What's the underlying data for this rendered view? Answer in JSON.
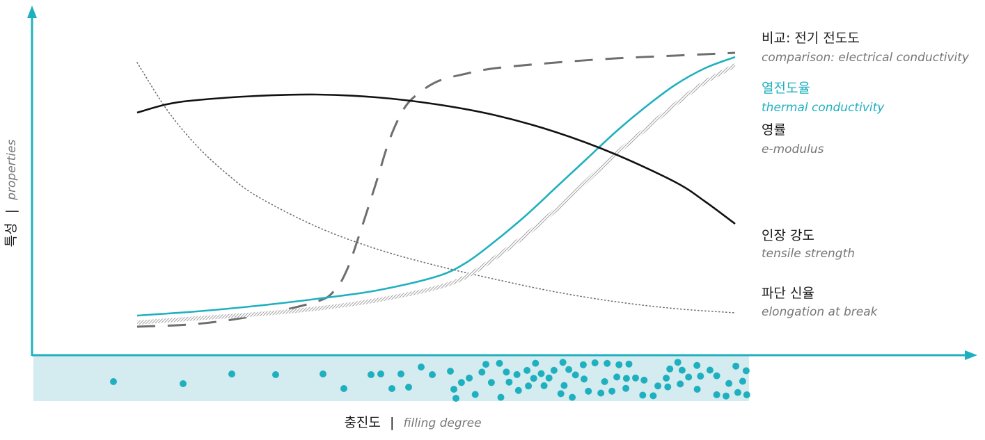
{
  "chart_data": {
    "type": "line",
    "xlabel": {
      "ko": "충진도",
      "separator": "|",
      "en": "filling degree"
    },
    "ylabel": {
      "ko": "특성",
      "separator": "|",
      "en": "properties"
    },
    "xlim": [
      0,
      100
    ],
    "ylim": [
      0,
      100
    ],
    "grid": false,
    "legend": "right",
    "colors": {
      "axis": "#1fb0bf",
      "accent": "#1fb0bf",
      "band": "#d4ebef",
      "dots": "#1fb0bf",
      "black": "#111111",
      "gray": "#6e6e6e"
    },
    "series": [
      {
        "key": "electrical",
        "name": {
          "ko": "비교: 전기 전도도",
          "en": "comparison: electrical conductivity"
        },
        "style": "dashed",
        "color": "#6e6e6e",
        "x": [
          0,
          10,
          20,
          30,
          33,
          35,
          37,
          40,
          42,
          44,
          46,
          50,
          55,
          60,
          70,
          80,
          90,
          100
        ],
        "y": [
          0,
          1,
          4,
          9,
          13,
          20,
          32,
          52,
          66,
          76,
          82,
          88,
          91,
          93,
          95,
          96.5,
          97.5,
          98.5
        ]
      },
      {
        "key": "thermal",
        "name": {
          "ko": "열전도율",
          "en": "thermal conductivity"
        },
        "style": "solid",
        "color": "#1fb0bf",
        "x": [
          0,
          10,
          20,
          30,
          40,
          50,
          55,
          60,
          65,
          70,
          75,
          80,
          85,
          90,
          95,
          100
        ],
        "y": [
          4,
          5.5,
          7.5,
          10,
          13,
          18,
          23,
          31,
          40,
          50,
          60,
          70,
          79,
          87,
          93,
          97
        ]
      },
      {
        "key": "emodulus",
        "name": {
          "ko": "영률",
          "en": "e-modulus"
        },
        "style": "hatched",
        "color": "#999999",
        "x": [
          0,
          10,
          20,
          30,
          40,
          50,
          55,
          60,
          65,
          70,
          75,
          80,
          85,
          90,
          95,
          100
        ],
        "y": [
          1.5,
          3,
          4.5,
          6.5,
          9.5,
          14,
          18,
          25,
          33,
          42,
          52,
          62,
          71,
          80,
          88,
          94
        ]
      },
      {
        "key": "tensile",
        "name": {
          "ko": "인장 강도",
          "en": "tensile strength"
        },
        "style": "solid",
        "color": "#111111",
        "x": [
          0,
          5,
          10,
          20,
          30,
          40,
          50,
          60,
          70,
          80,
          90,
          95,
          100
        ],
        "y": [
          77,
          80,
          81.5,
          83,
          83.5,
          82.5,
          80,
          76,
          70,
          62,
          52,
          45,
          37
        ]
      },
      {
        "key": "elongation",
        "name": {
          "ko": "파단 신율",
          "en": "elongation at break"
        },
        "style": "dotted",
        "color": "#6e6e6e",
        "x": [
          0,
          5,
          10,
          15,
          20,
          30,
          40,
          50,
          60,
          70,
          80,
          90,
          100
        ],
        "y": [
          95,
          78,
          65,
          55,
          47,
          36,
          28,
          22,
          17,
          12.5,
          9,
          6.5,
          5
        ]
      }
    ]
  }
}
